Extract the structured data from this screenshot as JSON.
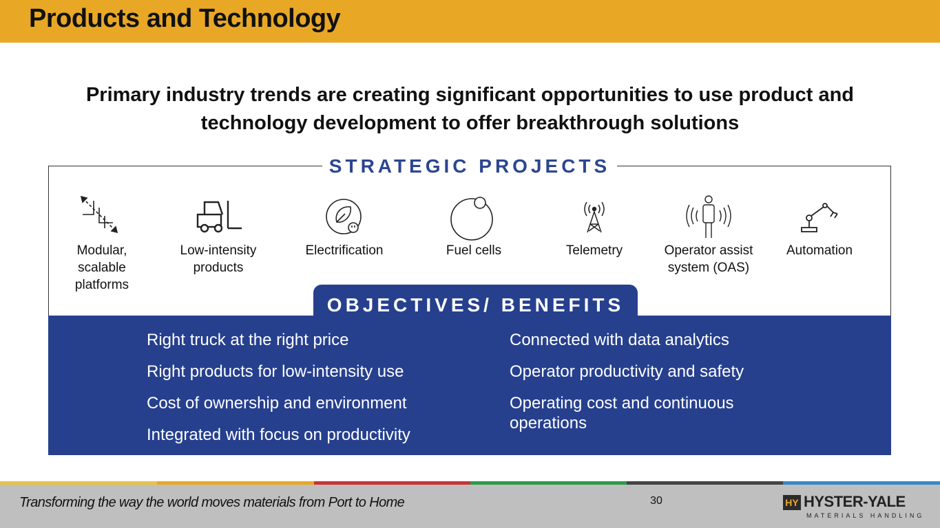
{
  "header": {
    "title": "Products and Technology"
  },
  "headline": "Primary industry trends are creating significant opportunities to use product and technology development to offer breakthrough solutions",
  "strategic_projects": {
    "title": "STRATEGIC PROJECTS",
    "items": [
      {
        "label": "Modular, scalable platforms",
        "icon": "modular-platform-icon"
      },
      {
        "label": "Low-intensity products",
        "icon": "forklift-icon"
      },
      {
        "label": "Electrification",
        "icon": "leaf-plug-icon"
      },
      {
        "label": "Fuel cells",
        "icon": "fuel-cell-icon"
      },
      {
        "label": "Telemetry",
        "icon": "antenna-tower-icon"
      },
      {
        "label": "Operator assist system (OAS)",
        "icon": "operator-signal-icon"
      },
      {
        "label": "Automation",
        "icon": "robot-arm-icon"
      }
    ]
  },
  "objectives": {
    "title": "OBJECTIVES/ BENEFITS",
    "left": [
      "Right truck at the right price",
      "Right products for low-intensity use",
      "Cost of ownership and environment",
      "Integrated with focus on productivity"
    ],
    "right": [
      "Connected with data analytics",
      "Operator productivity and safety",
      "Operating cost and continuous operations"
    ]
  },
  "footer": {
    "tagline": "Transforming the way the world moves materials from Port to Home",
    "page_number": "30",
    "logo": {
      "mark": "HY",
      "name": "HYSTER-YALE",
      "sub": "MATERIALS HANDLING"
    }
  },
  "colors": {
    "header": "#e8a826",
    "accent_blue": "#26408e",
    "footer": "#bfbfbf",
    "stripes": [
      "#e8c24a",
      "#e8a826",
      "#c8343a",
      "#2e9a4a",
      "#444444",
      "#3b87c6"
    ]
  }
}
